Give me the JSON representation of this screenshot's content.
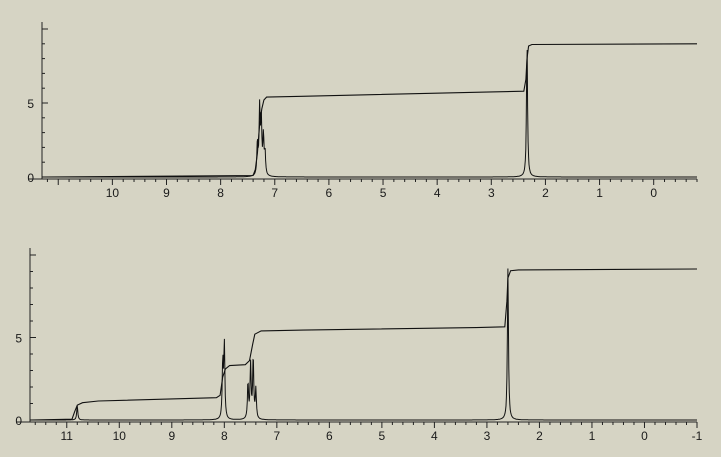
{
  "chart_data": [
    {
      "type": "line",
      "title": "",
      "xlabel": "",
      "ylabel": "",
      "x_reversed": true,
      "xlim": [
        11.3,
        -0.8
      ],
      "ylim": [
        0,
        10
      ],
      "grid": false,
      "x_ticks": [
        10,
        9,
        8,
        7,
        6,
        5,
        4,
        3,
        2,
        1,
        0
      ],
      "y_ticks": [
        0,
        5
      ],
      "spectrum": {
        "baseline": 0,
        "peaks": [
          {
            "ppm": 7.32,
            "height": 2.2
          },
          {
            "ppm": 7.28,
            "height": 4.5
          },
          {
            "ppm": 7.25,
            "height": 3.8
          },
          {
            "ppm": 7.21,
            "height": 2.6
          },
          {
            "ppm": 7.18,
            "height": 1.5
          },
          {
            "ppm": 2.34,
            "height": 9.0
          }
        ]
      },
      "integral": [
        [
          11.3,
          0.0
        ],
        [
          7.4,
          0.1
        ],
        [
          7.36,
          0.5
        ],
        [
          7.32,
          1.6
        ],
        [
          7.28,
          3.5
        ],
        [
          7.24,
          4.6
        ],
        [
          7.2,
          5.2
        ],
        [
          7.15,
          5.4
        ],
        [
          6.5,
          5.45
        ],
        [
          3.0,
          5.75
        ],
        [
          2.4,
          5.8
        ],
        [
          2.36,
          6.6
        ],
        [
          2.34,
          8.0
        ],
        [
          2.31,
          8.85
        ],
        [
          2.25,
          8.95
        ],
        [
          -0.8,
          9.0
        ]
      ]
    },
    {
      "type": "line",
      "title": "",
      "xlabel": "",
      "ylabel": "",
      "x_reversed": true,
      "xlim": [
        11.7,
        -1.0
      ],
      "ylim": [
        0,
        10
      ],
      "grid": false,
      "x_ticks": [
        11,
        10,
        9,
        8,
        7,
        6,
        5,
        4,
        3,
        2,
        1,
        0,
        -1
      ],
      "y_ticks": [
        0,
        5
      ],
      "spectrum": {
        "baseline": 0,
        "peaks": [
          {
            "ppm": 10.8,
            "height": 0.9
          },
          {
            "ppm": 8.03,
            "height": 3.5
          },
          {
            "ppm": 8.0,
            "height": 4.5
          },
          {
            "ppm": 7.55,
            "height": 2.2
          },
          {
            "ppm": 7.5,
            "height": 3.3
          },
          {
            "ppm": 7.45,
            "height": 3.8
          },
          {
            "ppm": 7.4,
            "height": 1.8
          },
          {
            "ppm": 2.6,
            "height": 9.3
          }
        ]
      },
      "integral": [
        [
          11.7,
          0.0
        ],
        [
          10.9,
          0.05
        ],
        [
          10.85,
          0.5
        ],
        [
          10.8,
          0.9
        ],
        [
          10.7,
          1.05
        ],
        [
          10.4,
          1.15
        ],
        [
          8.15,
          1.35
        ],
        [
          8.08,
          1.5
        ],
        [
          8.03,
          2.6
        ],
        [
          7.98,
          3.1
        ],
        [
          7.9,
          3.3
        ],
        [
          7.6,
          3.35
        ],
        [
          7.52,
          3.6
        ],
        [
          7.46,
          4.6
        ],
        [
          7.42,
          5.2
        ],
        [
          7.3,
          5.4
        ],
        [
          6.5,
          5.45
        ],
        [
          3.2,
          5.6
        ],
        [
          2.66,
          5.65
        ],
        [
          2.62,
          7.2
        ],
        [
          2.6,
          8.6
        ],
        [
          2.55,
          9.05
        ],
        [
          2.4,
          9.1
        ],
        [
          -1.0,
          9.15
        ]
      ]
    }
  ]
}
